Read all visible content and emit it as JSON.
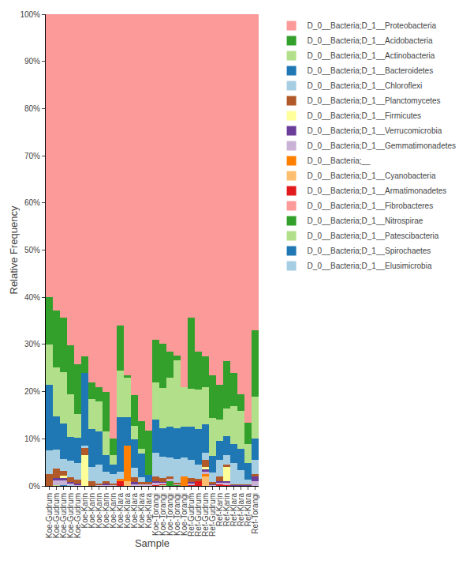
{
  "chart_data": {
    "type": "bar",
    "stacked": true,
    "grid": false,
    "legend": "right",
    "x_label": "Sample",
    "y_label": "Relative Frequency",
    "ylim": [
      0,
      100
    ],
    "yticks": [
      {
        "value": 0,
        "label": "0%"
      },
      {
        "value": 10,
        "label": "10%"
      },
      {
        "value": 20,
        "label": "20%"
      },
      {
        "value": 30,
        "label": "30%"
      },
      {
        "value": 40,
        "label": "40%"
      },
      {
        "value": 50,
        "label": "50%"
      },
      {
        "value": 60,
        "label": "60%"
      },
      {
        "value": 70,
        "label": "70%"
      },
      {
        "value": 80,
        "label": "80%"
      },
      {
        "value": 90,
        "label": "90%"
      },
      {
        "value": 100,
        "label": "100%"
      }
    ],
    "categories": [
      "Koe-Gudrum",
      "Koe-Gudrum",
      "Koe-Gudrum",
      "Koe-Gudrum",
      "Koe-Gudrum",
      "Koe-Karin",
      "Koe-Karin",
      "Koe-Karin",
      "Koe-Karin",
      "Koe-Karin",
      "Koe-Klara",
      "Koe-Klara",
      "Koe-Klara",
      "Koe-Klara",
      "Koe-Klara",
      "Koe-Torangi",
      "Koe-Torangi",
      "Koe-Torangi",
      "Koe-Torangi",
      "Koe-Torangi",
      "Ref-Gudrum",
      "Ref-Gudrum",
      "Ref-Gudrum",
      "Ref-Gudrum",
      "Ref-Karin",
      "Ref-Karin",
      "Ref-Klara",
      "Ref-Klara",
      "Ref-Klara",
      "Ref-Torangi"
    ],
    "series": [
      {
        "name": "D_0__Bacteria;D_1__Proteobacteria",
        "color": "#fb9a99",
        "values": [
          60,
          62.8,
          64.3,
          70.1,
          74.2,
          72.5,
          78,
          79,
          80,
          90,
          66,
          76.5,
          80.7,
          86.2,
          88.2,
          69,
          69.8,
          71.5,
          72.3,
          79,
          64.4,
          71.5,
          72.5,
          76.6,
          78.5,
          73.5,
          76.1,
          80.6,
          86.6,
          67
        ]
      },
      {
        "name": "D_0__Bacteria;D_1__Acidobacteria",
        "color": "#33a02c",
        "values": [
          10,
          12,
          11.5,
          10.5,
          10.5,
          3.5,
          3.5,
          3,
          8.5,
          3.5,
          9.5,
          0.5,
          6.5,
          6,
          9.5,
          9,
          9.5,
          5.5,
          1,
          0,
          15,
          8,
          6.5,
          9,
          7.5,
          10,
          7,
          3.5,
          4.5,
          14
        ]
      },
      {
        "name": "D_0__Bacteria;D_1__Actinobacteria",
        "color": "#b2df8a",
        "values": [
          8.5,
          10.5,
          11,
          9,
          5,
          0,
          6.5,
          6.5,
          5,
          2,
          10,
          8.5,
          3,
          1,
          0,
          8,
          8.5,
          10.5,
          14.5,
          8.5,
          8,
          8.5,
          8,
          8,
          4.5,
          6,
          8,
          8,
          4,
          9
        ]
      },
      {
        "name": "D_0__Bacteria;D_1__Bacteroidetes",
        "color": "#1f78b4",
        "values": [
          14,
          7,
          7.5,
          5,
          5.5,
          15.5,
          8,
          7,
          3.5,
          2,
          11.5,
          6,
          6,
          5,
          1.5,
          7,
          6,
          6.5,
          6.5,
          6.5,
          7,
          7.5,
          6,
          3.5,
          4,
          4,
          4,
          4.5,
          3.5,
          4.5
        ]
      },
      {
        "name": "D_0__Bacteria;D_1__Chloroflexi",
        "color": "#a6cee3",
        "values": [
          5,
          4,
          2.5,
          3.5,
          3.5,
          0.5,
          3,
          4,
          2,
          2,
          1.5,
          0,
          2,
          1,
          0,
          5,
          4.5,
          4,
          5,
          4,
          4,
          3,
          1.5,
          2,
          3.5,
          2,
          4.5,
          3,
          1,
          3
        ]
      },
      {
        "name": "D_0__Bacteria;D_1__Planctomycetes",
        "color": "#b15928",
        "values": [
          2.5,
          2,
          1,
          1,
          0.8,
          1.5,
          1,
          0.3,
          0.5,
          0.3,
          0,
          0,
          1,
          0.5,
          0.5,
          1,
          0.8,
          0.5,
          0.2,
          0,
          0.8,
          0.5,
          1.5,
          0.5,
          1,
          0.5,
          0.2,
          0.2,
          0.2,
          0.5
        ]
      },
      {
        "name": "D_0__Bacteria;D_1__Firmicutes",
        "color": "#ffff99",
        "values": [
          0,
          0,
          0.5,
          0,
          0,
          6.5,
          0,
          0,
          0,
          0,
          0,
          0,
          0,
          0,
          0,
          0,
          0,
          0,
          0,
          0,
          0,
          0,
          0.5,
          0,
          0,
          3,
          0,
          0,
          0,
          0
        ]
      },
      {
        "name": "D_0__Bacteria;D_1__Verrucomicrobia",
        "color": "#6a3d9a",
        "values": [
          0,
          0.5,
          0.5,
          0.3,
          0.2,
          0,
          0,
          0,
          0.2,
          0,
          0,
          0,
          0.3,
          0,
          0,
          0.3,
          0.2,
          0,
          0,
          0,
          0.2,
          0,
          0.5,
          0.2,
          0.3,
          0.3,
          0.1,
          0.1,
          0.1,
          1
        ]
      },
      {
        "name": "D_0__Bacteria;D_1__Gemmatimonadetes",
        "color": "#cab2d6",
        "values": [
          0,
          1,
          1,
          0.5,
          0.3,
          0,
          0,
          0.2,
          0.3,
          0.2,
          0,
          0,
          0.5,
          0.3,
          0.3,
          0.5,
          0.3,
          0.5,
          0.2,
          0,
          0.3,
          0,
          0.5,
          0.2,
          0.3,
          0.5,
          0.1,
          0.1,
          0.1,
          1
        ]
      },
      {
        "name": "D_0__Bacteria;__",
        "color": "#ff7f00",
        "values": [
          0,
          0,
          0,
          0,
          0,
          0,
          0,
          0,
          0,
          0,
          0.5,
          7.5,
          0,
          0,
          0,
          0,
          0,
          0,
          0,
          2,
          0,
          0,
          0.5,
          0,
          0,
          0,
          0,
          0,
          0,
          0
        ]
      },
      {
        "name": "D_0__Bacteria;D_1__Cyanobacteria",
        "color": "#fdbf6f",
        "values": [
          0,
          0,
          0,
          0,
          0,
          0,
          0,
          0,
          0,
          0,
          0,
          1,
          0,
          0,
          0,
          0,
          0,
          0,
          0,
          0,
          0,
          0,
          2,
          0,
          0,
          0,
          0,
          0,
          0,
          0
        ]
      },
      {
        "name": "D_0__Bacteria;D_1__Armatimonadetes",
        "color": "#e31a1c",
        "values": [
          0,
          0,
          0,
          0,
          0,
          0,
          0,
          0,
          0,
          0,
          1,
          0,
          0,
          0,
          0,
          0.2,
          0.2,
          0,
          0,
          0,
          0.2,
          1,
          0,
          0,
          0.4,
          0.2,
          0,
          0,
          0,
          0
        ]
      },
      {
        "name": "D_0__Bacteria;D_1__Fibrobacteres",
        "color": "#fb9a99",
        "values": [
          0,
          0,
          0,
          0,
          0,
          0,
          0,
          0,
          0,
          0,
          0,
          0,
          0,
          0,
          0,
          0,
          0,
          0,
          0,
          0,
          0.1,
          0,
          0,
          0,
          0,
          0,
          0,
          0,
          0,
          0
        ]
      },
      {
        "name": "D_0__Bacteria;D_1__Nitrospirae",
        "color": "#33a02c",
        "values": [
          0,
          0,
          0,
          0,
          0,
          0,
          0,
          0,
          0,
          0,
          0,
          0,
          0,
          0,
          0,
          0,
          0,
          1,
          0.3,
          0,
          0,
          0,
          0,
          0,
          0,
          0,
          0,
          0,
          0,
          0
        ]
      },
      {
        "name": "D_0__Bacteria;D_1__Patescibacteria",
        "color": "#b2df8a",
        "values": [
          0,
          0.2,
          0,
          0,
          0,
          0,
          0,
          0,
          0,
          0,
          0,
          0,
          0,
          0,
          0,
          0,
          0.2,
          0,
          0,
          0,
          0,
          0,
          0,
          0,
          0,
          0,
          0,
          0,
          0,
          0
        ]
      },
      {
        "name": "D_0__Bacteria;D_1__Spirochaetes",
        "color": "#1f78b4",
        "values": [
          0,
          0,
          0.2,
          0,
          0,
          0,
          0,
          0,
          0,
          0,
          0,
          0,
          0,
          0,
          0,
          0,
          0,
          0,
          0,
          0,
          0,
          0,
          0,
          0,
          0,
          0,
          0,
          0,
          0,
          0
        ]
      },
      {
        "name": "D_0__Bacteria;D_1__Elusimicrobia",
        "color": "#a6cee3",
        "values": [
          0,
          0,
          0,
          0.1,
          0,
          0,
          0,
          0,
          0,
          0,
          0,
          0,
          0,
          0,
          0,
          0,
          0,
          0,
          0,
          0,
          0,
          0,
          0,
          0,
          0,
          0,
          0,
          0,
          0,
          0
        ]
      }
    ]
  }
}
